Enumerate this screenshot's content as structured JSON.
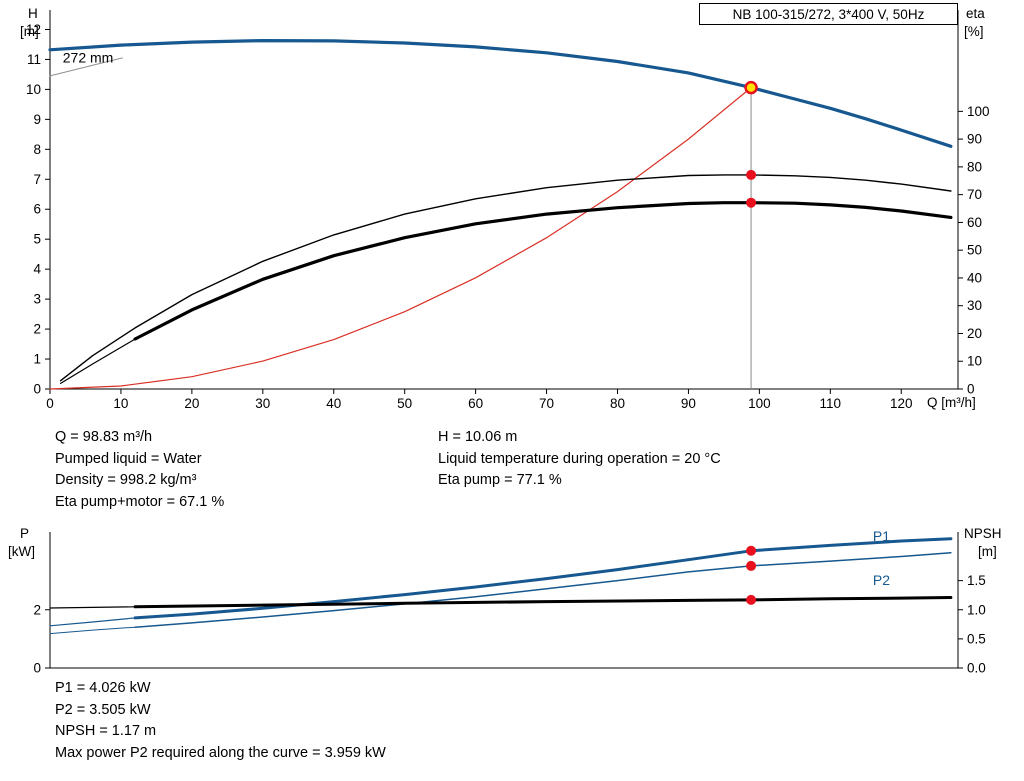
{
  "title_box": {
    "label": "NB 100-315/272, 3*400 V, 50Hz"
  },
  "colors": {
    "curve_blue": "#16588f",
    "curve_black": "#000000",
    "system_red": "#d93025",
    "dot_red": "#e8101c",
    "duty_yellow": "#ffe400",
    "op_line_gray": "#8a8a8a"
  },
  "results_top": {
    "left": [
      "Q = 98.83 m³/h",
      "Pumped liquid = Water",
      "Density = 998.2 kg/m³",
      "Eta pump+motor = 67.1 %"
    ],
    "right": [
      "H = 10.06 m",
      "Liquid temperature during operation = 20 °C",
      "Eta pump = 77.1 %"
    ]
  },
  "results_bottom": [
    "P1 = 4.026 kW",
    "P2 = 3.505 kW",
    "NPSH = 1.17 m",
    "Max power P2 required along the curve = 3.959 kW"
  ],
  "chart_data": [
    {
      "type": "line",
      "name": "hq-eta-chart",
      "x_axis": {
        "label": "Q [m³/h]",
        "min": 0,
        "max": 128,
        "ticks": [
          {
            "v": 0,
            "t": "0"
          },
          {
            "v": 10,
            "t": "10"
          },
          {
            "v": 20,
            "t": "20"
          },
          {
            "v": 30,
            "t": "30"
          },
          {
            "v": 40,
            "t": "40"
          },
          {
            "v": 50,
            "t": "50"
          },
          {
            "v": 60,
            "t": "60"
          },
          {
            "v": 70,
            "t": "70"
          },
          {
            "v": 80,
            "t": "80"
          },
          {
            "v": 90,
            "t": "90"
          },
          {
            "v": 100,
            "t": "100"
          },
          {
            "v": 110,
            "t": "110"
          },
          {
            "v": 120,
            "t": "120"
          }
        ]
      },
      "y_left": {
        "label": "H",
        "unit": "[m]",
        "min": 0,
        "max": 12.65,
        "ticks": [
          {
            "v": 0,
            "t": "0"
          },
          {
            "v": 1,
            "t": "1"
          },
          {
            "v": 2,
            "t": "2"
          },
          {
            "v": 3,
            "t": "3"
          },
          {
            "v": 4,
            "t": "4"
          },
          {
            "v": 5,
            "t": "5"
          },
          {
            "v": 6,
            "t": "6"
          },
          {
            "v": 7,
            "t": "7"
          },
          {
            "v": 8,
            "t": "8"
          },
          {
            "v": 9,
            "t": "9"
          },
          {
            "v": 10,
            "t": "10"
          },
          {
            "v": 11,
            "t": "11"
          },
          {
            "v": 12,
            "t": "12"
          }
        ]
      },
      "y_right": {
        "label": "eta",
        "unit": "[%]",
        "min": 0,
        "max": 136.5,
        "ticks": [
          {
            "v": 0,
            "t": "0"
          },
          {
            "v": 10,
            "t": "10"
          },
          {
            "v": 20,
            "t": "20"
          },
          {
            "v": 30,
            "t": "30"
          },
          {
            "v": 40,
            "t": "40"
          },
          {
            "v": 50,
            "t": "50"
          },
          {
            "v": 60,
            "t": "60"
          },
          {
            "v": 70,
            "t": "70"
          },
          {
            "v": 80,
            "t": "80"
          },
          {
            "v": 90,
            "t": "90"
          },
          {
            "v": 100,
            "t": "100"
          }
        ]
      },
      "op_line": {
        "q": 98.83,
        "from": 0,
        "to": 10.06,
        "axis": "left",
        "color": "#8a8a8a"
      },
      "series": [
        {
          "name": "impeller-callout-line",
          "axis": "left",
          "color": "#909090",
          "width": 1,
          "points": [
            [
              0,
              10.45
            ],
            [
              10.2,
              11.05
            ]
          ]
        },
        {
          "name": "system-curve",
          "axis": "left",
          "color": "#d93025",
          "width": 1.2,
          "points": [
            [
              0,
              0
            ],
            [
              10,
              0.1
            ],
            [
              20,
              0.41
            ],
            [
              30,
              0.93
            ],
            [
              40,
              1.65
            ],
            [
              50,
              2.58
            ],
            [
              60,
              3.71
            ],
            [
              70,
              5.05
            ],
            [
              80,
              6.59
            ],
            [
              90,
              8.34
            ],
            [
              98.83,
              10.06
            ]
          ]
        },
        {
          "name": "pump-curve-272mm",
          "axis": "left",
          "color": "#16588f",
          "width": 3.2,
          "points": [
            [
              0,
              11.32
            ],
            [
              10,
              11.48
            ],
            [
              20,
              11.58
            ],
            [
              30,
              11.63
            ],
            [
              40,
              11.62
            ],
            [
              50,
              11.55
            ],
            [
              60,
              11.42
            ],
            [
              70,
              11.22
            ],
            [
              80,
              10.93
            ],
            [
              90,
              10.55
            ],
            [
              98.83,
              10.06
            ],
            [
              105,
              9.68
            ],
            [
              110,
              9.37
            ],
            [
              115,
              9.02
            ],
            [
              120,
              8.64
            ],
            [
              127,
              8.1
            ]
          ]
        },
        {
          "name": "eta-pump-curve",
          "axis": "right",
          "color": "#000000",
          "width": 1.4,
          "points": [
            [
              1.5,
              3
            ],
            [
              6,
              12
            ],
            [
              12,
              22
            ],
            [
              20,
              34
            ],
            [
              30,
              46
            ],
            [
              40,
              55.5
            ],
            [
              50,
              63
            ],
            [
              60,
              68.5
            ],
            [
              70,
              72.5
            ],
            [
              80,
              75.2
            ],
            [
              90,
              76.9
            ],
            [
              95,
              77.1
            ],
            [
              98.83,
              77.1
            ],
            [
              105,
              76.8
            ],
            [
              110,
              76.2
            ],
            [
              115,
              75.2
            ],
            [
              120,
              73.8
            ],
            [
              127,
              71.3
            ]
          ]
        },
        {
          "name": "eta-pump-motor-lead",
          "axis": "right",
          "color": "#000000",
          "width": 1.2,
          "points": [
            [
              1.5,
              2
            ],
            [
              6,
              9
            ],
            [
              12,
              18
            ]
          ]
        },
        {
          "name": "eta-pump-motor-curve",
          "axis": "right",
          "color": "#000000",
          "width": 3.2,
          "points": [
            [
              12,
              18
            ],
            [
              20,
              28.5
            ],
            [
              30,
              39.5
            ],
            [
              40,
              48
            ],
            [
              50,
              54.5
            ],
            [
              60,
              59.5
            ],
            [
              70,
              63
            ],
            [
              80,
              65.3
            ],
            [
              90,
              66.8
            ],
            [
              95,
              67.1
            ],
            [
              98.83,
              67.1
            ],
            [
              105,
              66.9
            ],
            [
              110,
              66.3
            ],
            [
              115,
              65.4
            ],
            [
              120,
              64.1
            ],
            [
              127,
              61.8
            ]
          ]
        }
      ],
      "markers": [
        {
          "name": "duty-point-eta-pump",
          "q": 98.83,
          "v": 77.1,
          "axis": "right",
          "r": 5,
          "fill": "#e8101c"
        },
        {
          "name": "duty-point-eta-pump-motor",
          "q": 98.83,
          "v": 67.1,
          "axis": "right",
          "r": 5,
          "fill": "#e8101c"
        },
        {
          "name": "duty-point-head",
          "q": 98.83,
          "v": 10.06,
          "axis": "left",
          "r": 5.5,
          "fill": "#ffe400",
          "stroke": "#e8101c",
          "sw": 2.5
        }
      ],
      "labels": [
        {
          "name": "impeller-diameter-label",
          "q": 1.8,
          "v": 10.9,
          "axis": "left",
          "text": "272 mm",
          "color": "#000000"
        }
      ]
    },
    {
      "type": "line",
      "name": "power-npsh-chart",
      "x_axis": {
        "label": "",
        "min": 0,
        "max": 128,
        "ticks": []
      },
      "y_left": {
        "label": "P",
        "unit": "[kW]",
        "min": 0,
        "max": 4.67,
        "ticks": [
          {
            "v": 0,
            "t": "0"
          },
          {
            "v": 2,
            "t": "2"
          }
        ]
      },
      "y_right": {
        "label": "NPSH",
        "unit": "[m]",
        "min": 0,
        "max": 2.335,
        "ticks": [
          {
            "v": 0,
            "t": "0.0"
          },
          {
            "v": 0.5,
            "t": "0.5"
          },
          {
            "v": 1,
            "t": "1.0"
          },
          {
            "v": 1.5,
            "t": "1.5"
          }
        ]
      },
      "series": [
        {
          "name": "p1-lead",
          "axis": "left",
          "color": "#16588f",
          "width": 1.2,
          "points": [
            [
              0,
              1.45
            ],
            [
              6,
              1.58
            ],
            [
              12,
              1.72
            ]
          ]
        },
        {
          "name": "p1-curve",
          "axis": "left",
          "color": "#16588f",
          "width": 3,
          "points": [
            [
              12,
              1.72
            ],
            [
              20,
              1.85
            ],
            [
              30,
              2.05
            ],
            [
              40,
              2.28
            ],
            [
              50,
              2.52
            ],
            [
              60,
              2.78
            ],
            [
              70,
              3.07
            ],
            [
              80,
              3.38
            ],
            [
              90,
              3.72
            ],
            [
              98.83,
              4.026
            ],
            [
              110,
              4.21
            ],
            [
              120,
              4.36
            ],
            [
              127,
              4.44
            ]
          ]
        },
        {
          "name": "p2-lead",
          "axis": "left",
          "color": "#16588f",
          "width": 1,
          "points": [
            [
              0,
              1.18
            ],
            [
              6,
              1.3
            ],
            [
              12,
              1.4
            ]
          ]
        },
        {
          "name": "p2-curve",
          "axis": "left",
          "color": "#16588f",
          "width": 1.5,
          "points": [
            [
              12,
              1.4
            ],
            [
              20,
              1.55
            ],
            [
              30,
              1.75
            ],
            [
              40,
              1.97
            ],
            [
              50,
              2.2
            ],
            [
              60,
              2.45
            ],
            [
              70,
              2.72
            ],
            [
              80,
              3.0
            ],
            [
              90,
              3.3
            ],
            [
              98.83,
              3.505
            ],
            [
              110,
              3.67
            ],
            [
              120,
              3.83
            ],
            [
              127,
              3.96
            ]
          ]
        },
        {
          "name": "npsh-lead",
          "axis": "right",
          "color": "#000000",
          "width": 1.2,
          "points": [
            [
              0,
              1.03
            ],
            [
              6,
              1.04
            ],
            [
              12,
              1.05
            ]
          ]
        },
        {
          "name": "npsh-curve",
          "axis": "right",
          "color": "#000000",
          "width": 3,
          "points": [
            [
              12,
              1.05
            ],
            [
              30,
              1.08
            ],
            [
              50,
              1.11
            ],
            [
              70,
              1.14
            ],
            [
              90,
              1.16
            ],
            [
              98.83,
              1.17
            ],
            [
              110,
              1.19
            ],
            [
              120,
              1.2
            ],
            [
              127,
              1.21
            ]
          ]
        }
      ],
      "markers": [
        {
          "name": "duty-point-p1",
          "q": 98.83,
          "v": 4.026,
          "axis": "left",
          "r": 5,
          "fill": "#e8101c"
        },
        {
          "name": "duty-point-p2",
          "q": 98.83,
          "v": 3.505,
          "axis": "left",
          "r": 5,
          "fill": "#e8101c"
        },
        {
          "name": "duty-point-npsh",
          "q": 98.83,
          "v": 1.17,
          "axis": "right",
          "r": 5,
          "fill": "#e8101c"
        }
      ],
      "labels": [
        {
          "name": "p1-curve-label",
          "q": 116,
          "v": 4.36,
          "axis": "left",
          "text": "P1",
          "color": "#16588f"
        },
        {
          "name": "p2-curve-label",
          "q": 116,
          "v": 2.85,
          "axis": "left",
          "text": "P2",
          "color": "#16588f"
        }
      ]
    }
  ]
}
